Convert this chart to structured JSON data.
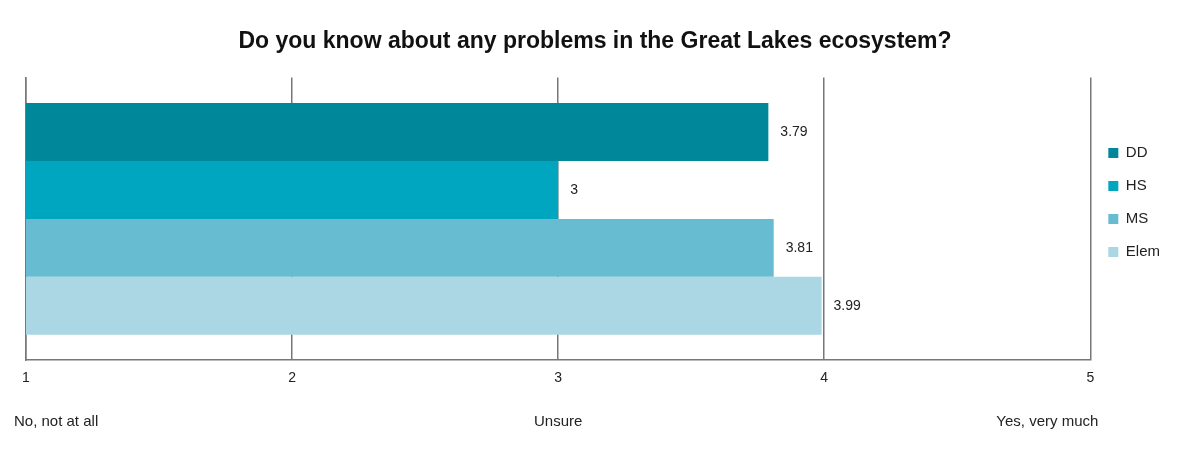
{
  "chart_data": {
    "type": "bar",
    "orientation": "horizontal",
    "title": "Do you know about any problems in the Great Lakes ecosystem?",
    "categories": [
      null
    ],
    "series": [
      {
        "name": "DD",
        "color": "#00889a",
        "values": [
          3.79
        ]
      },
      {
        "name": "HS",
        "color": "#00a5c0",
        "values": [
          3
        ]
      },
      {
        "name": "MS",
        "color": "#67bcd1",
        "values": [
          3.81
        ]
      },
      {
        "name": "Elem",
        "color": "#abd6e3",
        "values": [
          3.99
        ]
      }
    ],
    "xlim": [
      1,
      5
    ],
    "xticks": [
      1,
      2,
      3,
      4,
      5
    ],
    "grid": "x",
    "legend": "right",
    "data_labels": true,
    "annotations": [
      "No, not at all",
      "Unsure",
      "Yes, very much"
    ]
  }
}
